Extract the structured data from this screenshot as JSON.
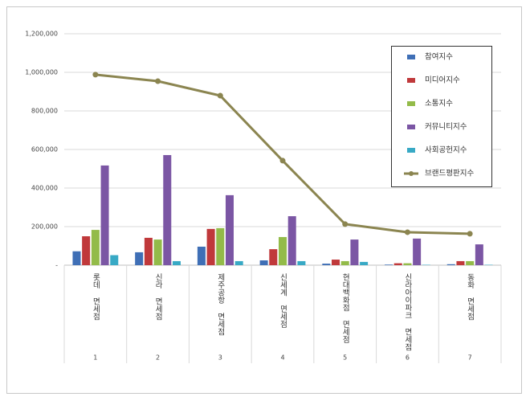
{
  "chart_data": {
    "type": "bar",
    "categories": [
      "롯데 면세점",
      "신라 면세점",
      "제주공항 면세점",
      "신세계 면세점",
      "현대백화점 면세점",
      "신라아이파크 면세점",
      "동화 면세점"
    ],
    "category_numbers": [
      "1",
      "2",
      "3",
      "4",
      "5",
      "6",
      "7"
    ],
    "series": [
      {
        "name": "참여지수",
        "color": "#3f6fb6",
        "values": [
          72000,
          67000,
          96000,
          25000,
          8000,
          3000,
          5000
        ]
      },
      {
        "name": "미디어지수",
        "color": "#c0393b",
        "values": [
          150000,
          142000,
          188000,
          83000,
          29000,
          10000,
          21000
        ]
      },
      {
        "name": "소통지수",
        "color": "#93bb49",
        "values": [
          183000,
          133000,
          192000,
          146000,
          21000,
          10000,
          21000
        ]
      },
      {
        "name": "커뮤니티지수",
        "color": "#7b56a4",
        "values": [
          517000,
          571000,
          363000,
          254000,
          133000,
          138000,
          108000
        ]
      },
      {
        "name": "사회공헌지수",
        "color": "#38a9c5",
        "values": [
          52000,
          21000,
          21000,
          21000,
          17000,
          2000,
          2000
        ]
      },
      {
        "name": "브랜드평판지수",
        "color": "#8b8550",
        "type": "line",
        "values": [
          988000,
          954000,
          879000,
          542000,
          213000,
          171000,
          163000
        ]
      }
    ],
    "ylim": [
      0,
      1200000
    ],
    "yticks": [
      {
        "value": 0,
        "label": "-"
      },
      {
        "value": 200000,
        "label": "200,000"
      },
      {
        "value": 400000,
        "label": "400,000"
      },
      {
        "value": 600000,
        "label": "600,000"
      },
      {
        "value": 800000,
        "label": "800,000"
      },
      {
        "value": 1000000,
        "label": "1,000,000"
      },
      {
        "value": 1200000,
        "label": "1,200,000"
      }
    ],
    "grid": true,
    "legend": "upper right"
  }
}
